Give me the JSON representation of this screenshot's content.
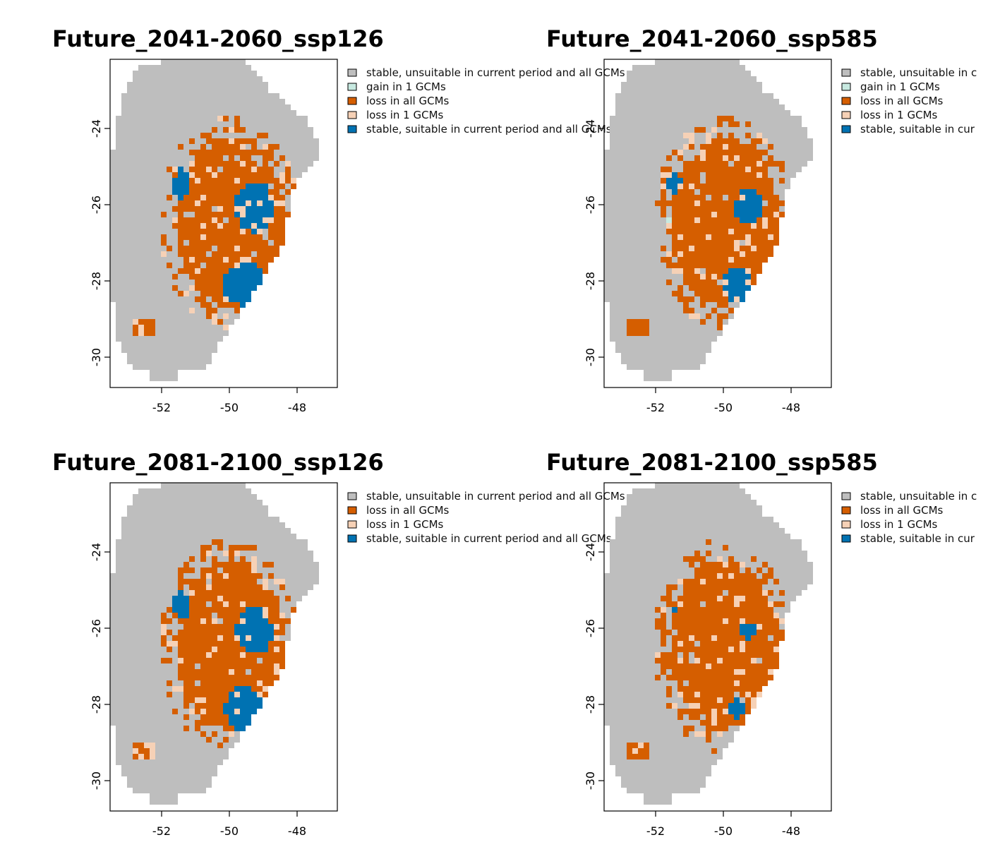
{
  "colors": {
    "stable_unsuitable": "#bebebe",
    "gain_1": "#c7e9e0",
    "loss_all": "#d55e00",
    "loss_1": "#f6d1b6",
    "stable_suitable": "#0072b2"
  },
  "panels": [
    {
      "id": "p1",
      "title": "Future_2041-2060_ssp126",
      "legend": [
        {
          "label": "stable, unsuitable in current period and all GCMs",
          "color": "stable_unsuitable"
        },
        {
          "label": "gain in 1 GCMs",
          "color": "gain_1"
        },
        {
          "label": "loss in all GCMs",
          "color": "loss_all"
        },
        {
          "label": "loss in 1 GCMs",
          "color": "loss_1"
        },
        {
          "label": "stable, suitable in current period and all GCMs",
          "color": "stable_suitable"
        }
      ],
      "x_ticks": [
        "-52",
        "-50",
        "-48"
      ],
      "y_ticks": [
        "-24",
        "-26",
        "-28",
        "-30"
      ],
      "suitable_level": 0.9,
      "gain": true
    },
    {
      "id": "p2",
      "title": "Future_2041-2060_ssp585",
      "legend": [
        {
          "label": "stable, unsuitable in c",
          "color": "stable_unsuitable"
        },
        {
          "label": "gain in 1 GCMs",
          "color": "gain_1"
        },
        {
          "label": "loss in all GCMs",
          "color": "loss_all"
        },
        {
          "label": "loss in 1 GCMs",
          "color": "loss_1"
        },
        {
          "label": "stable, suitable in cur",
          "color": "stable_suitable"
        }
      ],
      "x_ticks": [
        "-52",
        "-50",
        "-48"
      ],
      "y_ticks": [
        "-24",
        "-26",
        "-28",
        "-30"
      ],
      "suitable_level": 0.45,
      "gain": true
    },
    {
      "id": "p3",
      "title": "Future_2081-2100_ssp126",
      "legend": [
        {
          "label": "stable, unsuitable in current period and all GCMs",
          "color": "stable_unsuitable"
        },
        {
          "label": "loss in all GCMs",
          "color": "loss_all"
        },
        {
          "label": "loss in 1 GCMs",
          "color": "loss_1"
        },
        {
          "label": "stable, suitable in current period and all GCMs",
          "color": "stable_suitable"
        }
      ],
      "x_ticks": [
        "-52",
        "-50",
        "-48"
      ],
      "y_ticks": [
        "-24",
        "-26",
        "-28",
        "-30"
      ],
      "suitable_level": 0.75,
      "gain": false
    },
    {
      "id": "p4",
      "title": "Future_2081-2100_ssp585",
      "legend": [
        {
          "label": "stable, unsuitable in c",
          "color": "stable_unsuitable"
        },
        {
          "label": "loss in all GCMs",
          "color": "loss_all"
        },
        {
          "label": "loss in 1 GCMs",
          "color": "loss_1"
        },
        {
          "label": "stable, suitable in cur",
          "color": "stable_suitable"
        }
      ],
      "x_ticks": [
        "-52",
        "-50",
        "-48"
      ],
      "y_ticks": [
        "-24",
        "-26",
        "-28",
        "-30"
      ],
      "suitable_level": 0.12,
      "gain": false
    }
  ]
}
